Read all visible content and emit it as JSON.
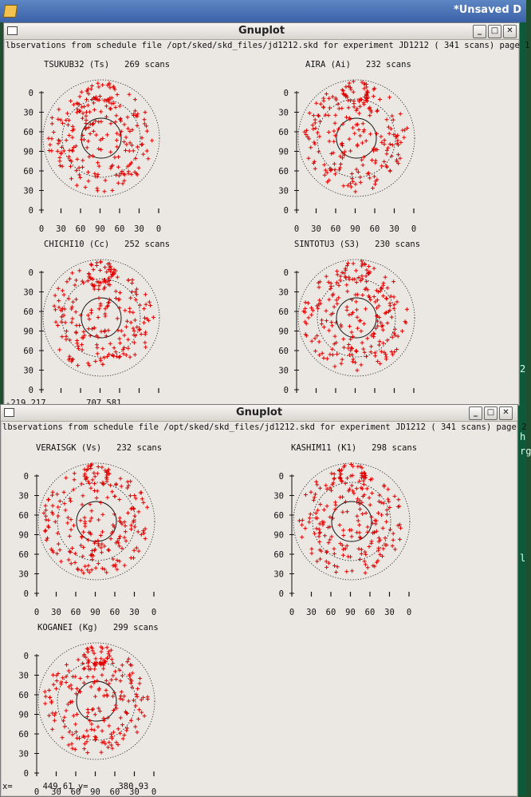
{
  "background_app": {
    "title": "*Unsaved D",
    "side_text": [
      "2",
      "h",
      "rg",
      "l"
    ]
  },
  "windows": [
    {
      "title": "Gnuplot",
      "header": "lbservations from schedule file /opt/sked/skd_files/jd1212.skd for experiment JD1212    (   341 scans) page 1",
      "buttons": {
        "minimize": "_",
        "maximize": "□",
        "close": "✕"
      },
      "plots": [
        {
          "station": "TSUKUB32 (Ts)",
          "scans": "269 scans"
        },
        {
          "station": "AIRA (Ai)",
          "scans": "232 scans"
        },
        {
          "station": "CHICHI10 (Cc)",
          "scans": "252 scans"
        },
        {
          "station": "SINTOTU3 (S3)",
          "scans": "230 scans"
        }
      ],
      "status_partial": "-219.217        707.581"
    },
    {
      "title": "Gnuplot",
      "header": "lbservations from schedule file /opt/sked/skd_files/jd1212.skd for experiment JD1212    (   341 scans) page 2",
      "buttons": {
        "minimize": "_",
        "maximize": "□",
        "close": "✕"
      },
      "plots": [
        {
          "station": "VERAISGK (Vs)",
          "scans": "232 scans"
        },
        {
          "station": "KASHIM11 (K1)",
          "scans": "298 scans"
        },
        {
          "station": "KOGANEI (Kg)",
          "scans": "299 scans"
        }
      ],
      "status": {
        "x_label": "x=",
        "x_value": "449.61",
        "y_label": "y=",
        "y_value": "380.93"
      }
    }
  ],
  "axis": {
    "y_ticks": [
      "0",
      "30",
      "60",
      "90",
      "60",
      "30",
      "0"
    ],
    "x_ticks": [
      "0",
      "30",
      "60",
      "90",
      "60",
      "30",
      "0"
    ]
  },
  "colors": {
    "points": "#e00000",
    "title_bar": "#3b62a8",
    "window_bg": "#ebe8e3"
  }
}
